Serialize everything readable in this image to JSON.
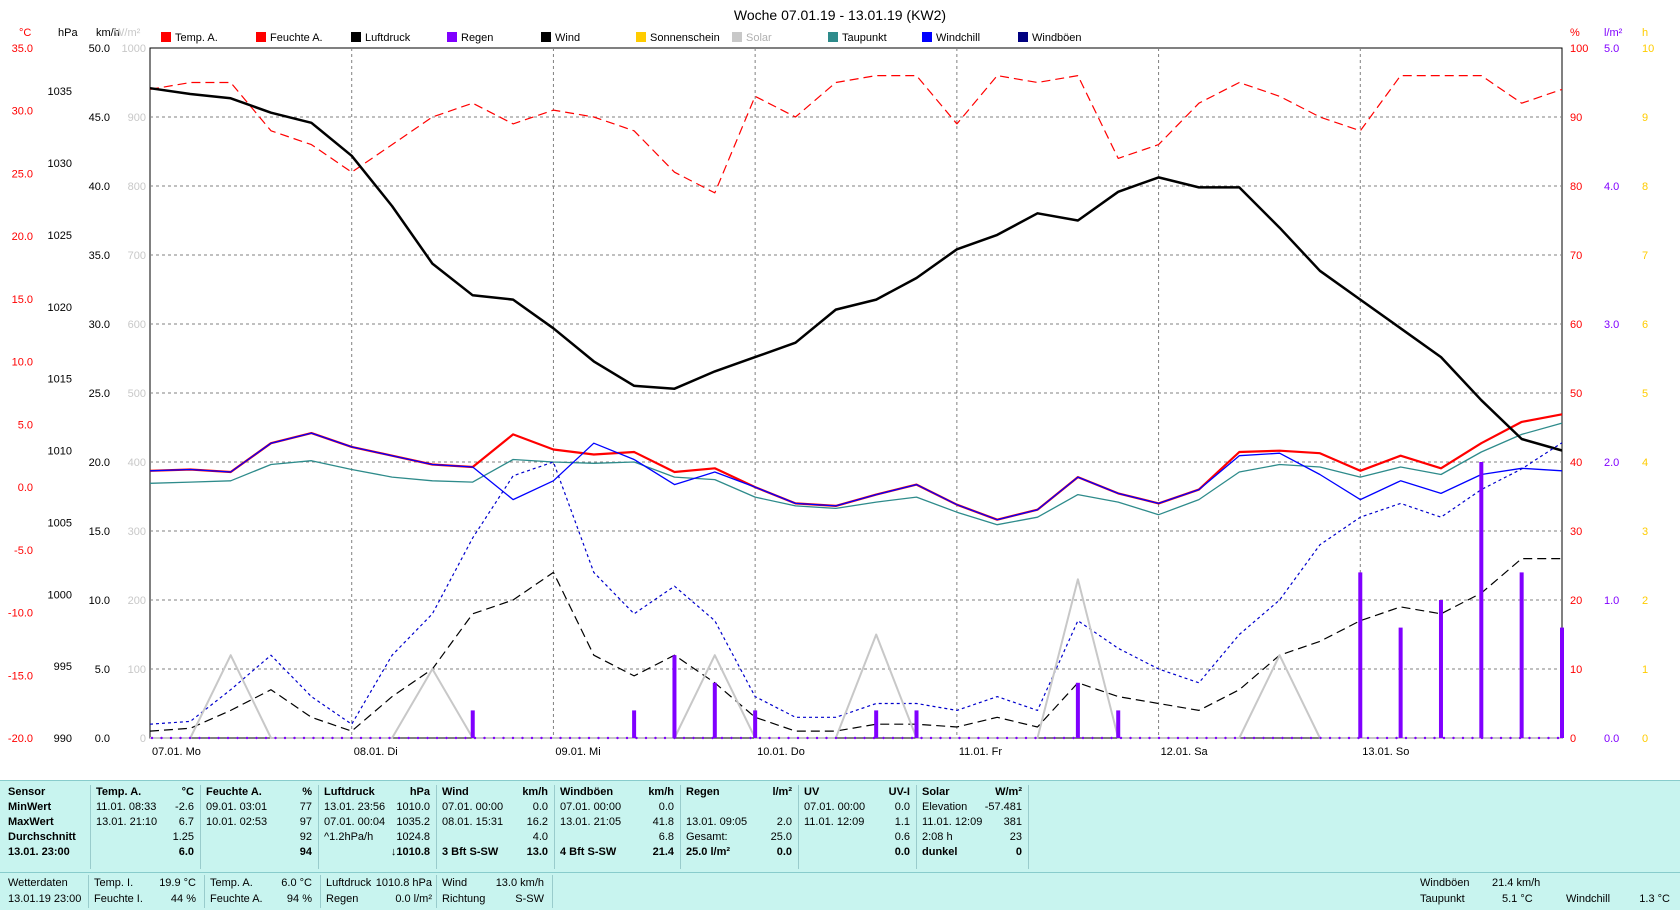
{
  "chart_data": {
    "type": "line",
    "title": "Woche 07.01.19 - 13.01.19 (KW2)",
    "legend": [
      {
        "name": "Temp. A.",
        "color": "#ff0000"
      },
      {
        "name": "Feuchte A.",
        "color": "#ff0000"
      },
      {
        "name": "Luftdruck",
        "color": "#000000"
      },
      {
        "name": "Regen",
        "color": "#8000ff"
      },
      {
        "name": "Wind",
        "color": "#000000"
      },
      {
        "name": "Sonnenschein",
        "color": "#ffcc00"
      },
      {
        "name": "Solar",
        "color": "#c8c8c8"
      },
      {
        "name": "Taupunkt",
        "color": "#2e8b8b"
      },
      {
        "name": "Windchill",
        "color": "#0000ff"
      },
      {
        "name": "Windböen",
        "color": "#000080"
      }
    ],
    "x_labels": [
      "07.01. Mo",
      "08.01. Di",
      "09.01. Mi",
      "10.01. Do",
      "11.01. Fr",
      "12.01. Sa",
      "13.01. So"
    ],
    "axes": {
      "temp": {
        "unit": "°C",
        "ticks": [
          "35.0",
          "30.0",
          "25.0",
          "20.0",
          "15.0",
          "10.0",
          "5.0",
          "0.0",
          "-5.0",
          "-10.0",
          "-15.0",
          "-20.0"
        ],
        "range": [
          -20,
          35
        ]
      },
      "pressure": {
        "unit": "hPa",
        "ticks": [
          "1035",
          "1030",
          "1025",
          "1020",
          "1015",
          "1010",
          "1005",
          "1000",
          "995",
          "990"
        ],
        "range": [
          990,
          1038
        ]
      },
      "wind": {
        "unit": "km/h",
        "ticks": [
          "50.0",
          "45.0",
          "40.0",
          "35.0",
          "30.0",
          "25.0",
          "20.0",
          "15.0",
          "10.0",
          "5.0",
          "0.0"
        ],
        "range": [
          0,
          50
        ]
      },
      "solar": {
        "unit": "W/m²",
        "ticks": [
          "1000",
          "900",
          "800",
          "700",
          "600",
          "500",
          "400",
          "300",
          "200",
          "100",
          "0"
        ],
        "range": [
          0,
          1000
        ]
      },
      "humidity": {
        "unit": "%",
        "ticks": [
          "100",
          "90",
          "80",
          "70",
          "60",
          "50",
          "40",
          "30",
          "20",
          "10",
          "0"
        ],
        "range": [
          0,
          100
        ]
      },
      "rain": {
        "unit": "l/m²",
        "ticks": [
          "5.0",
          "4.0",
          "3.0",
          "2.0",
          "1.0",
          "0.0"
        ],
        "range": [
          0,
          5
        ]
      },
      "sun": {
        "unit": "h",
        "ticks": [
          "10",
          "9",
          "8",
          "7",
          "6",
          "5",
          "4",
          "3",
          "2",
          "1",
          "0"
        ],
        "range": [
          0,
          10
        ]
      }
    },
    "series": [
      {
        "name": "Temp. A.",
        "axis": "temp",
        "values": [
          1.3,
          1.4,
          1.2,
          3.5,
          4.3,
          3.2,
          2.5,
          1.8,
          1.6,
          4.2,
          3.0,
          2.6,
          2.8,
          1.2,
          1.5,
          0.0,
          -1.3,
          -1.5,
          -0.6,
          0.2,
          -1.4,
          -2.6,
          -1.8,
          0.8,
          -0.5,
          -1.3,
          -0.2,
          2.8,
          2.9,
          2.7,
          1.3,
          2.5,
          1.5,
          3.5,
          5.2,
          5.8
        ]
      },
      {
        "name": "Taupunkt",
        "axis": "temp",
        "values": [
          0.3,
          0.4,
          0.5,
          1.8,
          2.1,
          1.4,
          0.8,
          0.5,
          0.4,
          2.2,
          2.0,
          1.9,
          2.0,
          0.8,
          0.6,
          -0.8,
          -1.5,
          -1.7,
          -1.2,
          -0.8,
          -2.0,
          -3.0,
          -2.4,
          -0.6,
          -1.2,
          -2.2,
          -1.0,
          1.2,
          1.8,
          1.6,
          0.8,
          1.6,
          1.0,
          2.8,
          4.2,
          5.1
        ]
      },
      {
        "name": "Windchill",
        "axis": "temp",
        "values": [
          1.3,
          1.4,
          1.2,
          3.5,
          4.3,
          3.2,
          2.5,
          1.8,
          1.6,
          -1.0,
          0.5,
          3.5,
          2.2,
          0.2,
          1.2,
          0.0,
          -1.3,
          -1.5,
          -0.6,
          0.2,
          -1.4,
          -2.6,
          -1.8,
          0.8,
          -0.5,
          -1.3,
          -0.2,
          2.5,
          2.7,
          1.0,
          -1.0,
          0.5,
          -0.5,
          1.0,
          1.5,
          1.3
        ]
      },
      {
        "name": "Feuchte A.",
        "axis": "humidity",
        "values": [
          94,
          95,
          95,
          88,
          86,
          82,
          86,
          90,
          92,
          89,
          91,
          90,
          88,
          82,
          79,
          93,
          90,
          95,
          96,
          96,
          89,
          96,
          95,
          96,
          84,
          86,
          92,
          95,
          93,
          90,
          88,
          96,
          96,
          96,
          92,
          94
        ]
      },
      {
        "name": "Luftdruck",
        "axis": "pressure",
        "values": [
          1035.2,
          1034.8,
          1034.5,
          1033.5,
          1032.8,
          1030.5,
          1027,
          1023,
          1020.8,
          1020.5,
          1018.5,
          1016.2,
          1014.5,
          1014.3,
          1015.5,
          1016.5,
          1017.5,
          1019.8,
          1020.5,
          1022,
          1024,
          1025,
          1026.5,
          1026,
          1028,
          1029,
          1028.3,
          1028.3,
          1025.5,
          1022.5,
          1020.5,
          1018.5,
          1016.5,
          1013.5,
          1010.8,
          1010.0
        ]
      },
      {
        "name": "Wind",
        "axis": "wind",
        "values": [
          0.5,
          0.7,
          2.0,
          3.5,
          1.5,
          0.5,
          3.0,
          5.0,
          9.0,
          10.0,
          12.0,
          6.0,
          4.5,
          6.0,
          4.0,
          1.5,
          0.5,
          0.5,
          1.0,
          1.0,
          0.8,
          1.5,
          0.8,
          4.0,
          3.0,
          2.5,
          2.0,
          3.5,
          6.0,
          7.0,
          8.5,
          9.5,
          9.0,
          10.5,
          13.0,
          13.0
        ]
      },
      {
        "name": "Windböen",
        "axis": "wind",
        "values": [
          1.0,
          1.2,
          3.5,
          6.0,
          3.0,
          1.0,
          6.0,
          9.0,
          14.5,
          19.0,
          20.0,
          12.0,
          9.0,
          11.0,
          8.5,
          3.0,
          1.5,
          1.5,
          2.5,
          2.5,
          2.0,
          3.0,
          2.0,
          8.5,
          6.5,
          5.0,
          4.0,
          7.5,
          10.0,
          14.0,
          16.0,
          17.0,
          16.0,
          18.0,
          19.5,
          21.4
        ]
      },
      {
        "name": "Solar",
        "axis": "solar",
        "values": [
          0,
          0,
          120,
          0,
          0,
          0,
          0,
          100,
          0,
          0,
          0,
          0,
          0,
          0,
          120,
          0,
          0,
          0,
          150,
          0,
          0,
          0,
          0,
          230,
          0,
          0,
          0,
          0,
          120,
          0,
          0,
          0,
          0,
          0,
          0,
          0
        ]
      },
      {
        "name": "Regen",
        "axis": "rain",
        "type": "bar",
        "values": [
          0,
          0,
          0,
          0,
          0,
          0,
          0,
          0,
          0.2,
          0,
          0,
          0,
          0.2,
          0.6,
          0.4,
          0.2,
          0,
          0,
          0.2,
          0.2,
          0,
          0,
          0,
          0.4,
          0.2,
          0,
          0,
          0,
          0,
          0,
          1.2,
          0.8,
          1.0,
          2.0,
          1.2,
          0.8
        ]
      }
    ]
  },
  "stats": {
    "sensor": {
      "header": "Sensor",
      "rows": [
        "MinWert",
        "MaxWert",
        "Durchschnitt",
        "13.01.  23:00"
      ]
    },
    "temp": {
      "header": "Temp. A.",
      "unit": "°C",
      "rows": [
        [
          "11.01.  08:33",
          "-2.6"
        ],
        [
          "13.01.  21:10",
          "6.7"
        ],
        [
          "",
          "1.25"
        ],
        [
          "",
          "6.0"
        ]
      ]
    },
    "feuchte": {
      "header": "Feuchte A.",
      "unit": "%",
      "rows": [
        [
          "09.01.  03:01",
          "77"
        ],
        [
          "10.01.  02:53",
          "97"
        ],
        [
          "",
          "92"
        ],
        [
          "",
          "94"
        ]
      ]
    },
    "luftdruck": {
      "header": "Luftdruck",
      "unit": "hPa",
      "rows": [
        [
          "13.01.  23:56",
          "1010.0"
        ],
        [
          "07.01.  00:04",
          "1035.2"
        ],
        [
          "^1.2hPa/h",
          "1024.8"
        ],
        [
          "",
          "↓1010.8"
        ]
      ]
    },
    "wind": {
      "header": "Wind",
      "unit": "km/h",
      "rows": [
        [
          "07.01.  00:00",
          "0.0"
        ],
        [
          "08.01.  15:31",
          "16.2"
        ],
        [
          "",
          "4.0"
        ],
        [
          "3 Bft S-SW",
          "13.0"
        ]
      ]
    },
    "windboeen": {
      "header": "Windböen",
      "unit": "km/h",
      "rows": [
        [
          "07.01.  00:00",
          "0.0"
        ],
        [
          "13.01.  21:05",
          "41.8"
        ],
        [
          "",
          "6.8"
        ],
        [
          "4 Bft S-SW",
          "21.4"
        ]
      ]
    },
    "regen": {
      "header": "Regen",
      "unit": "l/m²",
      "rows": [
        [
          "13.01.  09:05",
          "2.0"
        ],
        [
          "Gesamt:",
          "25.0"
        ],
        [
          "25.0 l/m²",
          "0.0"
        ]
      ]
    },
    "uv": {
      "header": "UV",
      "unit": "UV-I",
      "rows": [
        [
          "07.01.  00:00",
          "0.0"
        ],
        [
          "11.01.  12:09",
          "1.1"
        ],
        [
          "",
          "0.6"
        ],
        [
          "",
          "0.0"
        ]
      ]
    },
    "solar": {
      "header": "Solar",
      "unit": "W/m²",
      "rows": [
        [
          "Elevation",
          "-57.481"
        ],
        [
          "11.01.  12:09",
          "381"
        ],
        [
          "2:08 h",
          "23"
        ],
        [
          "dunkel",
          "0"
        ]
      ]
    }
  },
  "status": {
    "wetterdaten": "Wetterdaten",
    "datetime": "13.01.19 23:00",
    "temp_i_label": "Temp. I.",
    "temp_i_value": "19.9 °C",
    "feuchte_i_label": "Feuchte I.",
    "feuchte_i_value": "44 %",
    "temp_a_label": "Temp. A.",
    "temp_a_value": "6.0 °C",
    "feuchte_a_label": "Feuchte A.",
    "feuchte_a_value": "94 %",
    "luftdruck_label": "Luftdruck",
    "luftdruck_value": "1010.8 hPa",
    "regen_label": "Regen",
    "regen_value": "0.0 l/m²",
    "wind_label": "Wind",
    "wind_value": "13.0 km/h",
    "richtung_label": "Richtung",
    "richtung_value": "S-SW",
    "windboeen_label": "Windböen",
    "windboeen_value": "21.4 km/h",
    "taupunkt_label": "Taupunkt",
    "taupunkt_value": "5.1 °C",
    "windchill_label": "Windchill",
    "windchill_value": "1.3 °C"
  }
}
